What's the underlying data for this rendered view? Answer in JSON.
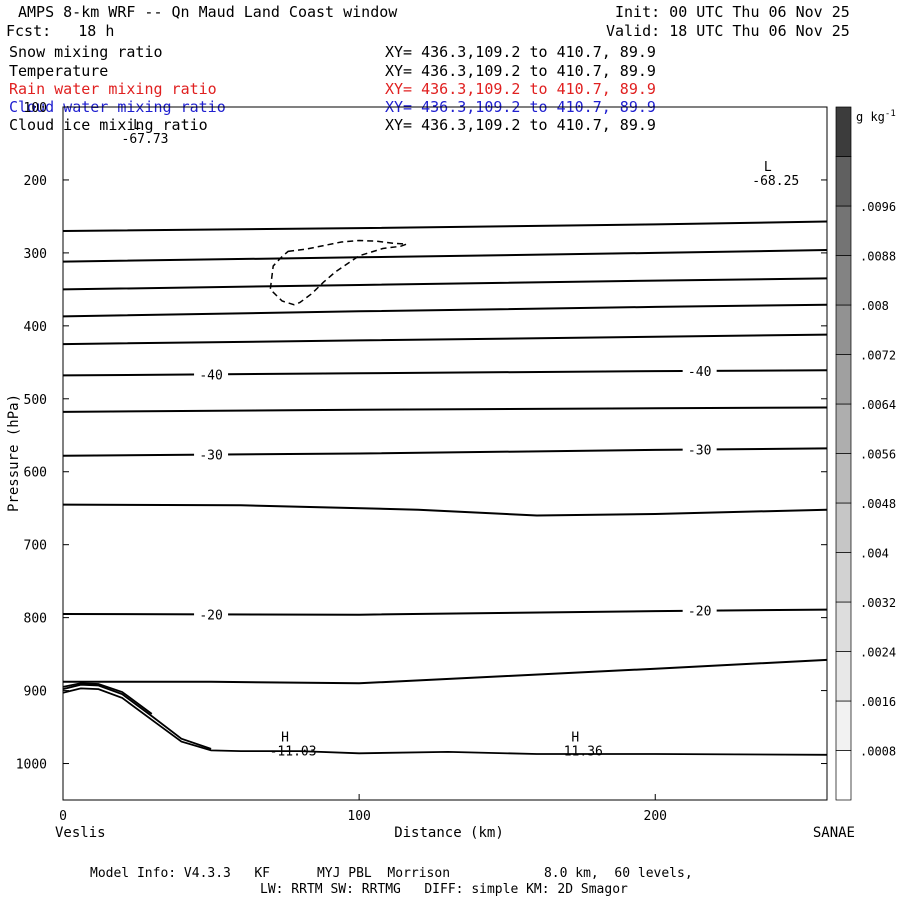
{
  "header": {
    "title": "AMPS 8-km WRF -- Qn Maud Land Coast window",
    "init": "Init: 00 UTC Thu 06 Nov 25",
    "fcst": "Fcst:   18 h",
    "valid": "Valid: 18 UTC Thu 06 Nov 25"
  },
  "fields": [
    {
      "name": "Snow mixing ratio",
      "xy": "XY= 436.3,109.2 to 410.7, 89.9",
      "color": "#000000"
    },
    {
      "name": "Temperature",
      "xy": "XY= 436.3,109.2 to 410.7, 89.9",
      "color": "#000000"
    },
    {
      "name": "Rain water mixing ratio",
      "xy": "XY= 436.3,109.2 to 410.7, 89.9",
      "color": "#e02020"
    },
    {
      "name": "Cloud water mixing ratio",
      "xy": "XY= 436.3,109.2 to 410.7, 89.9",
      "color": "#2020d0"
    },
    {
      "name": "Cloud ice mixing ratio",
      "xy": "XY= 436.3,109.2 to 410.7, 89.9",
      "color": "#000000"
    }
  ],
  "footer": {
    "line1": "Model Info: V4.3.3   KF      MYJ PBL  Morrison            8.0 km,  60 levels,",
    "line2": "LW: RRTM SW: RRTMG   DIFF: simple KM: 2D Smagor"
  },
  "chart_data": {
    "type": "line",
    "title": "AMPS 8-km WRF -- Qn Maud Land Coast window",
    "xlabel": "Distance (km)",
    "ylabel": "Pressure (hPa)",
    "xlim": [
      0,
      258
    ],
    "ylim": [
      1050,
      100
    ],
    "x_ticks": [
      0,
      100,
      200
    ],
    "y_ticks": [
      100,
      200,
      300,
      400,
      500,
      600,
      700,
      800,
      900,
      1000
    ],
    "left_end_label": "Veslis",
    "right_end_label": "SANAE",
    "colorbar": {
      "unit": "g kg",
      "unit_exp": "-1",
      "labels": [
        ".0008",
        ".0016",
        ".0024",
        ".0032",
        ".004",
        ".0048",
        ".0056",
        ".0064",
        ".0072",
        ".008",
        ".0088",
        ".0096"
      ],
      "colors": [
        "#ffffff",
        "#f2f2f2",
        "#e8e8e8",
        "#dddddd",
        "#d2d2d2",
        "#c6c6c6",
        "#bababa",
        "#aeaeae",
        "#a0a0a0",
        "#929292",
        "#838383",
        "#747474",
        "#606060",
        "#3c3c3c"
      ]
    },
    "temperature_contours": [
      {
        "points": [
          [
            0,
            270
          ],
          [
            100,
            266
          ],
          [
            200,
            261
          ],
          [
            258,
            257
          ]
        ]
      },
      {
        "points": [
          [
            0,
            312
          ],
          [
            100,
            306
          ],
          [
            200,
            300
          ],
          [
            258,
            296
          ]
        ]
      },
      {
        "points": [
          [
            0,
            350
          ],
          [
            100,
            344
          ],
          [
            200,
            338
          ],
          [
            258,
            335
          ]
        ]
      },
      {
        "points": [
          [
            0,
            387
          ],
          [
            100,
            380
          ],
          [
            200,
            374
          ],
          [
            258,
            371
          ]
        ]
      },
      {
        "points": [
          [
            0,
            425
          ],
          [
            100,
            420
          ],
          [
            200,
            415
          ],
          [
            258,
            412
          ]
        ]
      },
      {
        "points": [
          [
            0,
            468
          ],
          [
            100,
            465
          ],
          [
            200,
            462
          ],
          [
            258,
            461
          ]
        ],
        "label": "-40"
      },
      {
        "points": [
          [
            0,
            518
          ],
          [
            100,
            515
          ],
          [
            200,
            513
          ],
          [
            258,
            512
          ]
        ]
      },
      {
        "points": [
          [
            0,
            578
          ],
          [
            100,
            575
          ],
          [
            200,
            570
          ],
          [
            258,
            568
          ]
        ],
        "label": "-30"
      },
      {
        "points": [
          [
            0,
            645
          ],
          [
            60,
            646
          ],
          [
            120,
            652
          ],
          [
            160,
            660
          ],
          [
            200,
            658
          ],
          [
            258,
            652
          ]
        ]
      },
      {
        "points": [
          [
            0,
            795
          ],
          [
            100,
            796
          ],
          [
            200,
            791
          ],
          [
            258,
            789
          ]
        ],
        "label": "-20"
      },
      {
        "points": [
          [
            0,
            888
          ],
          [
            50,
            888
          ],
          [
            100,
            890
          ],
          [
            150,
            880
          ],
          [
            200,
            870
          ],
          [
            258,
            858
          ]
        ]
      }
    ],
    "terrain": [
      {
        "points": [
          [
            0,
            903
          ],
          [
            6,
            897
          ],
          [
            12,
            898
          ],
          [
            20,
            910
          ],
          [
            30,
            940
          ],
          [
            40,
            970
          ],
          [
            50,
            982
          ],
          [
            60,
            983
          ],
          [
            80,
            983
          ],
          [
            100,
            986
          ],
          [
            130,
            984
          ],
          [
            160,
            987
          ],
          [
            200,
            987
          ],
          [
            258,
            988
          ]
        ]
      },
      {
        "points": [
          [
            0,
            898
          ],
          [
            6,
            892
          ],
          [
            12,
            893
          ],
          [
            20,
            905
          ],
          [
            30,
            935
          ],
          [
            40,
            966
          ],
          [
            50,
            980
          ]
        ]
      },
      {
        "points": [
          [
            0,
            895
          ],
          [
            6,
            890
          ],
          [
            12,
            891
          ],
          [
            20,
            902
          ],
          [
            30,
            932
          ]
        ]
      }
    ],
    "cloud_ice_contour": [
      [
        76,
        298
      ],
      [
        82,
        295
      ],
      [
        88,
        290
      ],
      [
        94,
        285
      ],
      [
        100,
        283
      ],
      [
        106,
        284
      ],
      [
        112,
        287
      ],
      [
        116,
        288
      ],
      [
        114,
        291
      ],
      [
        108,
        294
      ],
      [
        100,
        304
      ],
      [
        92,
        326
      ],
      [
        88,
        340
      ],
      [
        84,
        356
      ],
      [
        80,
        368
      ],
      [
        78,
        371
      ],
      [
        74,
        366
      ],
      [
        70,
        350
      ],
      [
        71,
        318
      ],
      [
        74,
        305
      ],
      [
        76,
        298
      ]
    ],
    "annotations": [
      {
        "symbol": "L",
        "value": "-67.73",
        "x": 25,
        "p": 130
      },
      {
        "symbol": "L",
        "value": "-68.25",
        "x": 238,
        "p": 188
      },
      {
        "symbol": "H",
        "value": "-11.03",
        "x": 75,
        "p": 970
      },
      {
        "symbol": "H",
        "value": "11.36",
        "x": 173,
        "p": 970
      }
    ]
  }
}
